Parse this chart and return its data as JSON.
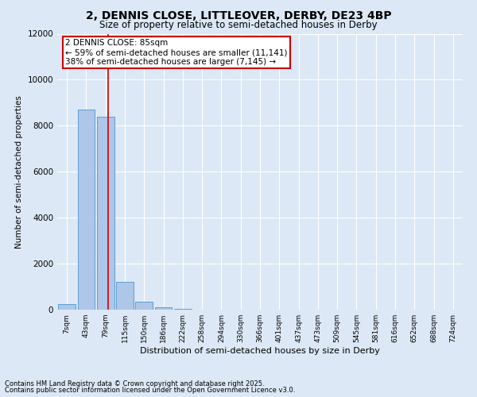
{
  "title_line1": "2, DENNIS CLOSE, LITTLEOVER, DERBY, DE23 4BP",
  "title_line2": "Size of property relative to semi-detached houses in Derby",
  "xlabel": "Distribution of semi-detached houses by size in Derby",
  "ylabel": "Number of semi-detached properties",
  "bar_labels": [
    "7sqm",
    "43sqm",
    "79sqm",
    "115sqm",
    "150sqm",
    "186sqm",
    "222sqm",
    "258sqm",
    "294sqm",
    "330sqm",
    "366sqm",
    "401sqm",
    "437sqm",
    "473sqm",
    "509sqm",
    "545sqm",
    "581sqm",
    "616sqm",
    "652sqm",
    "688sqm",
    "724sqm"
  ],
  "bar_values": [
    250,
    8700,
    8400,
    1200,
    350,
    100,
    50,
    0,
    0,
    0,
    0,
    0,
    0,
    0,
    0,
    0,
    0,
    0,
    0,
    0,
    0
  ],
  "bar_color": "#aec6e8",
  "bar_edge_color": "#5a9fd4",
  "property_line_x": 2.15,
  "annotation_text_line1": "2 DENNIS CLOSE: 85sqm",
  "annotation_text_line2": "← 59% of semi-detached houses are smaller (11,141)",
  "annotation_text_line3": "38% of semi-detached houses are larger (7,145) →",
  "annotation_box_color": "#cc0000",
  "vline_color": "#cc0000",
  "ylim": [
    0,
    12000
  ],
  "yticks": [
    0,
    2000,
    4000,
    6000,
    8000,
    10000,
    12000
  ],
  "background_color": "#dce8f5",
  "grid_color": "#ffffff",
  "footnote_line1": "Contains HM Land Registry data © Crown copyright and database right 2025.",
  "footnote_line2": "Contains public sector information licensed under the Open Government Licence v3.0."
}
